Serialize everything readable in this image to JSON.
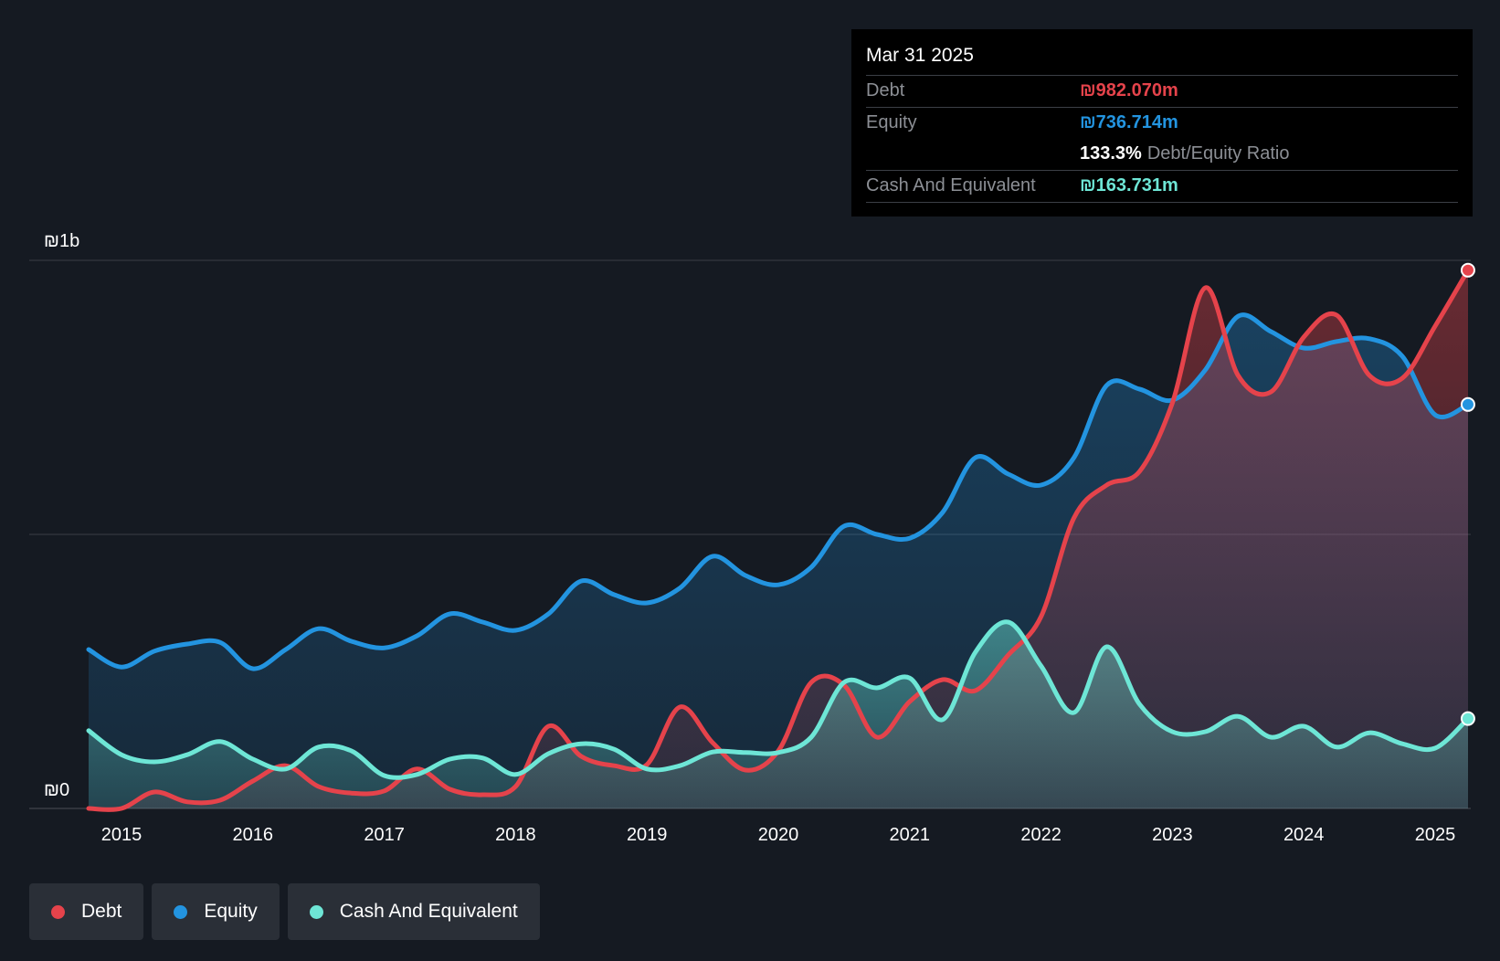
{
  "tooltip": {
    "date": "Mar 31 2025",
    "debt_label": "Debt",
    "debt_value": "₪982.070m",
    "equity_label": "Equity",
    "equity_value": "₪736.714m",
    "ratio_value": "133.3%",
    "ratio_label": "Debt/Equity Ratio",
    "cash_label": "Cash And Equivalent",
    "cash_value": "₪163.731m"
  },
  "legend": {
    "debt": "Debt",
    "equity": "Equity",
    "cash": "Cash And Equivalent"
  },
  "colors": {
    "debt": "#e5434b",
    "equity": "#2394e0",
    "cash": "#6ee6d6",
    "background": "#151a22"
  },
  "chart_data": {
    "type": "area",
    "title": "",
    "xlabel": "",
    "ylabel": "",
    "ylim": [
      0,
      1000
    ],
    "y_tick_labels": [
      "₪0",
      "₪1b"
    ],
    "x_tick_labels": [
      "2015",
      "2016",
      "2017",
      "2018",
      "2019",
      "2020",
      "2021",
      "2022",
      "2023",
      "2024",
      "2025"
    ],
    "x_ticks": [
      2015,
      2016,
      2017,
      2018,
      2019,
      2020,
      2021,
      2022,
      2023,
      2024,
      2025
    ],
    "xlim": [
      2014.15,
      2025.25
    ],
    "units": "₪m",
    "series": [
      {
        "name": "Debt",
        "key": "debt",
        "x": [
          2014.75,
          2015.0,
          2015.25,
          2015.5,
          2015.75,
          2016.0,
          2016.25,
          2016.5,
          2016.75,
          2017.0,
          2017.25,
          2017.5,
          2017.75,
          2018.0,
          2018.25,
          2018.5,
          2018.75,
          2019.0,
          2019.25,
          2019.5,
          2019.75,
          2020.0,
          2020.25,
          2020.5,
          2020.75,
          2021.0,
          2021.25,
          2021.5,
          2021.75,
          2022.0,
          2022.25,
          2022.5,
          2022.75,
          2023.0,
          2023.25,
          2023.5,
          2023.75,
          2024.0,
          2024.25,
          2024.5,
          2024.75,
          2025.0,
          2025.25
        ],
        "values": [
          0,
          0,
          30,
          12,
          15,
          50,
          78,
          40,
          28,
          32,
          72,
          35,
          25,
          40,
          150,
          95,
          78,
          80,
          185,
          120,
          70,
          105,
          230,
          225,
          130,
          195,
          235,
          215,
          280,
          350,
          530,
          590,
          615,
          740,
          950,
          790,
          760,
          860,
          900,
          790,
          785,
          880,
          982
        ]
      },
      {
        "name": "Equity",
        "key": "equity",
        "x": [
          2014.75,
          2015.0,
          2015.25,
          2015.5,
          2015.75,
          2016.0,
          2016.25,
          2016.5,
          2016.75,
          2017.0,
          2017.25,
          2017.5,
          2017.75,
          2018.0,
          2018.25,
          2018.5,
          2018.75,
          2019.0,
          2019.25,
          2019.5,
          2019.75,
          2020.0,
          2020.25,
          2020.5,
          2020.75,
          2021.0,
          2021.25,
          2021.5,
          2021.75,
          2022.0,
          2022.25,
          2022.5,
          2022.75,
          2023.0,
          2023.25,
          2023.5,
          2023.75,
          2024.0,
          2024.25,
          2024.5,
          2024.75,
          2025.0,
          2025.25
        ],
        "values": [
          290,
          258,
          287,
          300,
          303,
          255,
          290,
          328,
          305,
          293,
          315,
          355,
          340,
          325,
          355,
          415,
          390,
          375,
          402,
          460,
          425,
          408,
          440,
          515,
          500,
          493,
          540,
          640,
          610,
          590,
          640,
          772,
          765,
          745,
          800,
          898,
          870,
          840,
          852,
          857,
          825,
          718,
          737
        ]
      },
      {
        "name": "Cash And Equivalent",
        "key": "cash",
        "x": [
          2014.75,
          2015.0,
          2015.25,
          2015.5,
          2015.75,
          2016.0,
          2016.25,
          2016.5,
          2016.75,
          2017.0,
          2017.25,
          2017.5,
          2017.75,
          2018.0,
          2018.25,
          2018.5,
          2018.75,
          2019.0,
          2019.25,
          2019.5,
          2019.75,
          2020.0,
          2020.25,
          2020.5,
          2020.75,
          2021.0,
          2021.25,
          2021.5,
          2021.75,
          2022.0,
          2022.25,
          2022.5,
          2022.75,
          2023.0,
          2023.25,
          2023.5,
          2023.75,
          2024.0,
          2024.25,
          2024.5,
          2024.75,
          2025.0,
          2025.25
        ],
        "values": [
          142,
          98,
          85,
          98,
          122,
          90,
          72,
          112,
          105,
          60,
          62,
          90,
          92,
          62,
          100,
          118,
          108,
          72,
          78,
          103,
          102,
          102,
          130,
          230,
          220,
          238,
          162,
          285,
          340,
          260,
          175,
          295,
          190,
          140,
          140,
          168,
          130,
          150,
          112,
          138,
          118,
          110,
          164
        ]
      }
    ]
  }
}
